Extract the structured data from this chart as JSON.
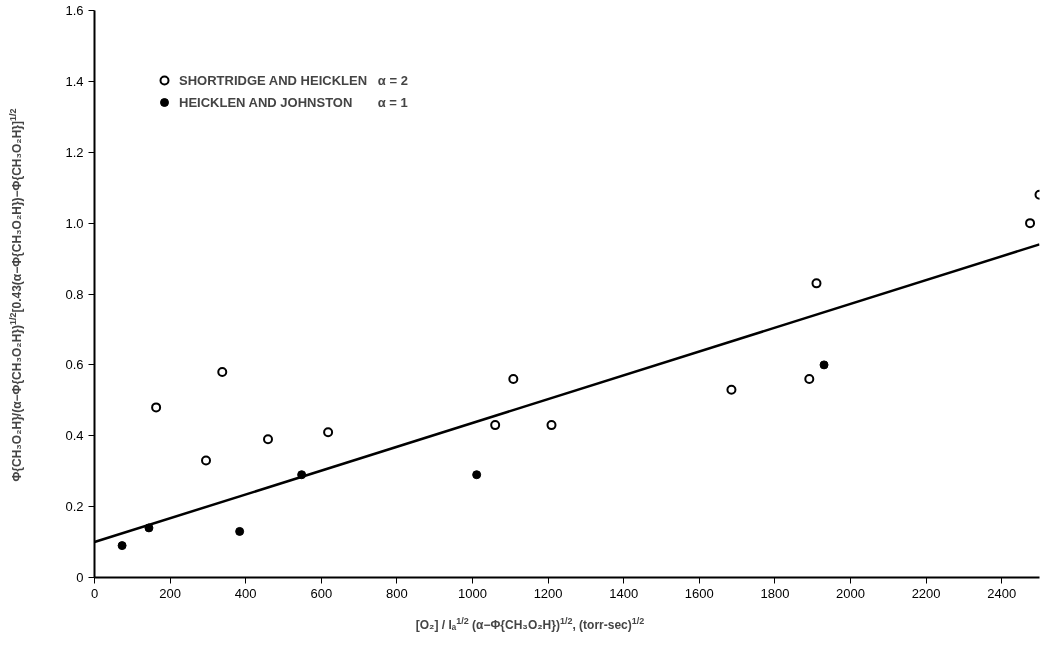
{
  "chart_data": {
    "type": "scatter",
    "xlabel": "[O₂] / Iₐ$^{1/2}$ (α−Φ{CH₃O₂H})$^{1/2}$, (torr-sec)$^{1/2}$",
    "ylabel": "Φ{CH₃O₂H}/(α−Φ{CH₃O₂H})$^{1/2}$[0.43(α−Φ{CH₃O₂H})−Φ{CH₃O₂H}]$^{1/2}$",
    "series": [
      {
        "name": "SHORTRIDGE AND HEICKLEN   α = 2",
        "color": "#000000",
        "marker": "circle",
        "x": [
          163,
          295,
          338,
          459,
          618,
          1060,
          1108,
          1209,
          1685,
          1891,
          1910,
          2475,
          2500
        ],
        "values": [
          0.48,
          0.33,
          0.58,
          0.39,
          0.41,
          0.43,
          0.56,
          0.43,
          0.53,
          0.56,
          0.83,
          1.0,
          1.08
        ]
      },
      {
        "name": "HEICKLEN AND JOHNSTON       α = 1",
        "color": "#000000",
        "marker": "circle",
        "x": [
          73,
          144,
          384,
          548,
          1011,
          1930
        ],
        "values": [
          0.09,
          0.14,
          0.13,
          0.29,
          0.29,
          0.6
        ]
      },
      {
        "type": "line",
        "color": "#000000",
        "x": [
          0,
          2500
        ],
        "values": [
          0.1,
          0.94
        ]
      }
    ],
    "xlim": [
      0,
      2500
    ],
    "ylim": [
      0,
      1.6
    ],
    "xticks": [
      0,
      200,
      400,
      600,
      800,
      1000,
      1200,
      1400,
      1600,
      1800,
      2000,
      2200,
      2400
    ],
    "yticks": [
      0,
      0.2,
      0.4,
      0.6,
      0.8,
      {
        "value": 1.0,
        "label": "1.0"
      },
      1.2,
      1.4,
      1.6
    ],
    "grid": false,
    "legend": "top left",
    "line_style": "solid"
  }
}
